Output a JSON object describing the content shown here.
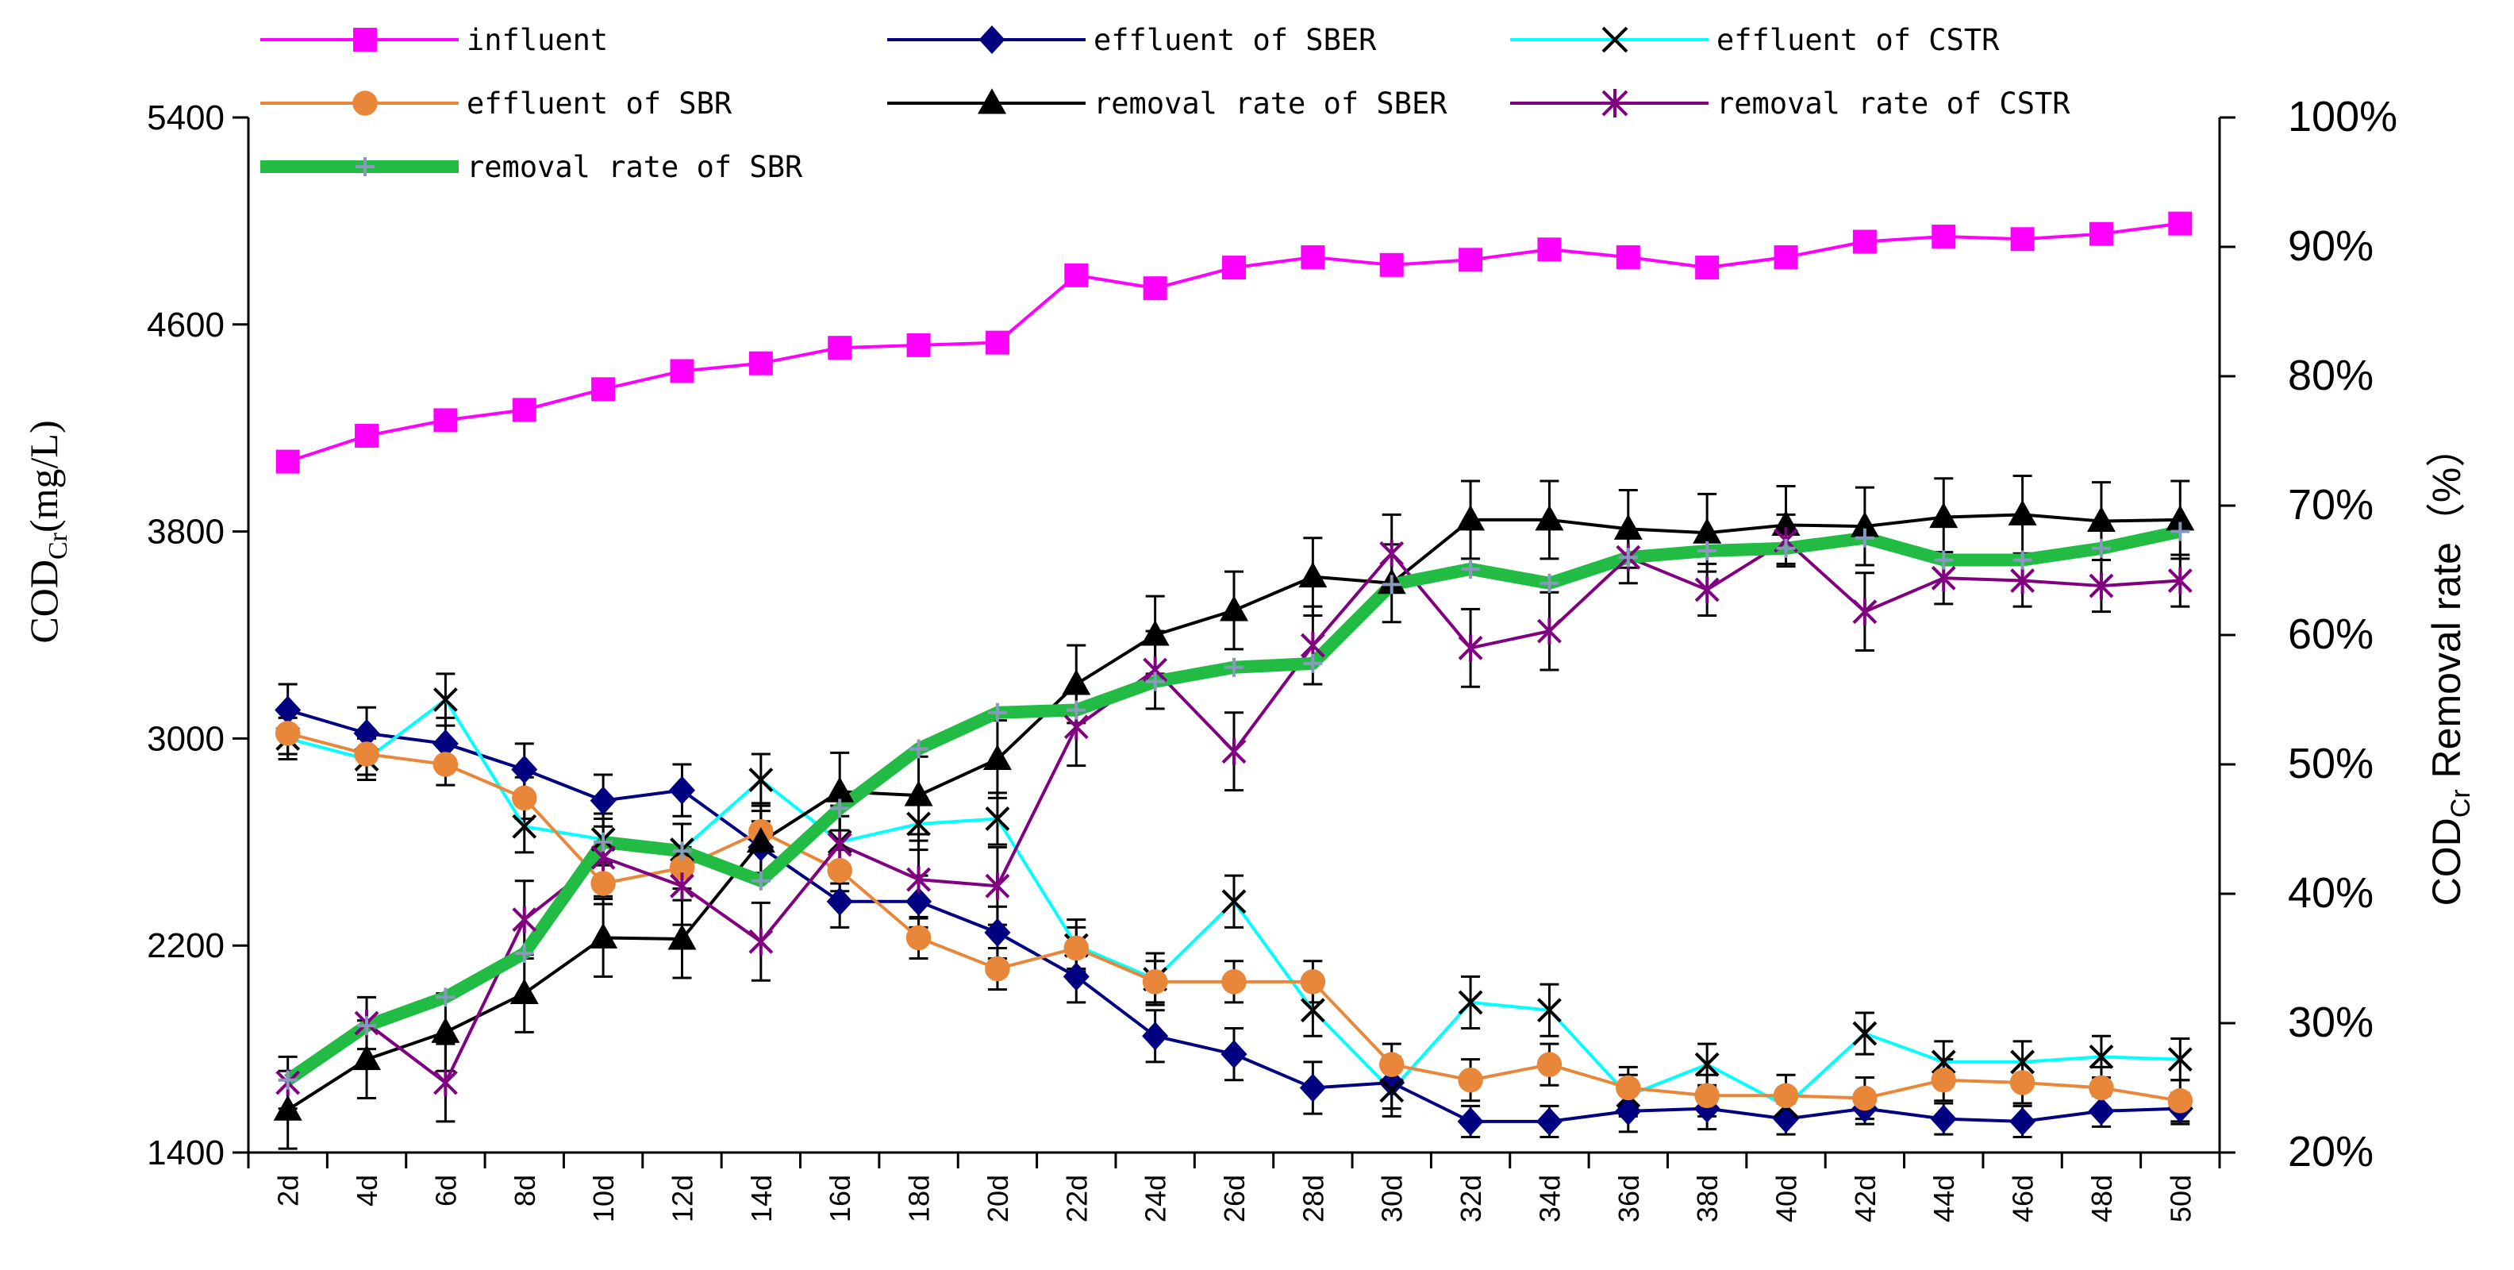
{
  "chart_data": {
    "type": "line",
    "x": [
      "2d",
      "4d",
      "6d",
      "8d",
      "10d",
      "12d",
      "14d",
      "16d",
      "18d",
      "20d",
      "22d",
      "24d",
      "26d",
      "28d",
      "30d",
      "32d",
      "34d",
      "36d",
      "38d",
      "40d",
      "42d",
      "44d",
      "46d",
      "48d",
      "50d"
    ],
    "y_left": {
      "label_main": "COD",
      "label_sub": "Cr",
      "label_unit": "(mg/L)",
      "lim": [
        1400,
        5400
      ],
      "ticks": [
        1400,
        2200,
        3000,
        3800,
        4600,
        5400
      ]
    },
    "y_right": {
      "label_main": "COD",
      "label_sub": "Cr",
      "label_rest": " Removal rate（%）",
      "lim": [
        20,
        100
      ],
      "ticks": [
        20,
        30,
        40,
        50,
        60,
        70,
        80,
        90,
        100
      ],
      "tick_suffix": "%"
    },
    "legend_position": "top",
    "series": [
      {
        "name": "influent",
        "axis": "left",
        "color": "#FF00FF",
        "marker": "square",
        "values": [
          4070,
          4170,
          4230,
          4270,
          4350,
          4420,
          4450,
          4510,
          4520,
          4530,
          4790,
          4740,
          4820,
          4860,
          4830,
          4850,
          4890,
          4860,
          4820,
          4860,
          4920,
          4940,
          4930,
          4950,
          4990
        ],
        "errors": [
          20,
          20,
          20,
          20,
          20,
          20,
          20,
          20,
          20,
          20,
          20,
          20,
          30,
          30,
          20,
          20,
          20,
          20,
          20,
          30,
          20,
          20,
          20,
          20,
          20
        ]
      },
      {
        "name": "effluent of SBER",
        "axis": "left",
        "color": "#000080",
        "marker": "diamond",
        "values": [
          3110,
          3020,
          2980,
          2880,
          2760,
          2800,
          2580,
          2370,
          2370,
          2250,
          2080,
          1850,
          1780,
          1650,
          1670,
          1520,
          1520,
          1560,
          1570,
          1530,
          1570,
          1530,
          1520,
          1560,
          1570
        ],
        "errors": [
          100,
          100,
          100,
          100,
          100,
          100,
          100,
          100,
          100,
          100,
          100,
          100,
          100,
          100,
          100,
          60,
          60,
          80,
          80,
          60,
          60,
          60,
          60,
          60,
          60
        ]
      },
      {
        "name": "effluent of CSTR",
        "axis": "left",
        "color": "#00FFFF",
        "marker": "x",
        "values": [
          3000,
          2920,
          3150,
          2660,
          2610,
          2570,
          2840,
          2600,
          2670,
          2690,
          2200,
          2070,
          2370,
          1950,
          1640,
          1980,
          1950,
          1620,
          1740,
          1580,
          1860,
          1750,
          1750,
          1770,
          1760
        ],
        "errors": [
          80,
          80,
          100,
          100,
          100,
          100,
          100,
          100,
          100,
          100,
          100,
          100,
          100,
          100,
          100,
          100,
          100,
          80,
          80,
          60,
          80,
          80,
          80,
          80,
          80
        ]
      },
      {
        "name": "effluent of SBR",
        "axis": "left",
        "color": "#E8873A",
        "marker": "circle",
        "values": [
          3020,
          2940,
          2900,
          2770,
          2440,
          2500,
          2640,
          2490,
          2230,
          2110,
          2190,
          2060,
          2060,
          2060,
          1740,
          1680,
          1740,
          1650,
          1620,
          1620,
          1610,
          1680,
          1670,
          1650,
          1600
        ],
        "errors": [
          80,
          80,
          80,
          80,
          80,
          80,
          80,
          80,
          80,
          80,
          80,
          80,
          80,
          80,
          80,
          80,
          80,
          80,
          80,
          80,
          80,
          80,
          80,
          80,
          80
        ]
      },
      {
        "name": "removal rate of SBER",
        "axis": "right",
        "color": "#000000",
        "marker": "triangle",
        "values": [
          23.3,
          27.2,
          29.3,
          32.3,
          36.6,
          36.5,
          44.0,
          47.9,
          47.6,
          50.4,
          56.2,
          60.0,
          61.9,
          64.5,
          64.0,
          68.9,
          68.9,
          68.2,
          67.9,
          68.5,
          68.4,
          69.1,
          69.3,
          68.8,
          68.9
        ],
        "errors": [
          3,
          3,
          3,
          3,
          3,
          3,
          3,
          3,
          3,
          3,
          3,
          3,
          3,
          3,
          3,
          3,
          3,
          3,
          3,
          3,
          3,
          3,
          3,
          3,
          3
        ]
      },
      {
        "name": "removal rate of CSTR",
        "axis": "right",
        "color": "#800080",
        "marker": "star",
        "values": [
          25.4,
          30.0,
          25.4,
          38.0,
          42.8,
          40.6,
          36.3,
          43.8,
          41.1,
          40.6,
          52.9,
          57.3,
          51.0,
          59.2,
          66.3,
          59.0,
          60.3,
          66.0,
          63.5,
          67.3,
          61.8,
          64.4,
          64.2,
          63.8,
          64.2
        ],
        "errors": [
          2,
          2,
          3,
          3,
          3,
          3,
          3,
          3,
          3,
          3,
          3,
          3,
          3,
          3,
          3,
          3,
          3,
          2,
          2,
          2,
          3,
          2,
          2,
          2,
          2
        ]
      },
      {
        "name": "removal rate of SBR",
        "axis": "right",
        "color": "#22BB44",
        "marker": "plus",
        "values": [
          25.6,
          29.8,
          32.0,
          35.4,
          44.0,
          43.3,
          41.0,
          46.6,
          51.2,
          54.0,
          54.2,
          56.4,
          57.5,
          57.8,
          63.9,
          65.1,
          64.0,
          66.0,
          66.5,
          66.7,
          67.5,
          65.8,
          65.8,
          66.7,
          68.0
        ],
        "errors": [
          0,
          0,
          0,
          0,
          0,
          0,
          0,
          0,
          0,
          0,
          0,
          0,
          0,
          0,
          0,
          0,
          0,
          0,
          0,
          0,
          0,
          0,
          0,
          0,
          0
        ]
      }
    ]
  }
}
